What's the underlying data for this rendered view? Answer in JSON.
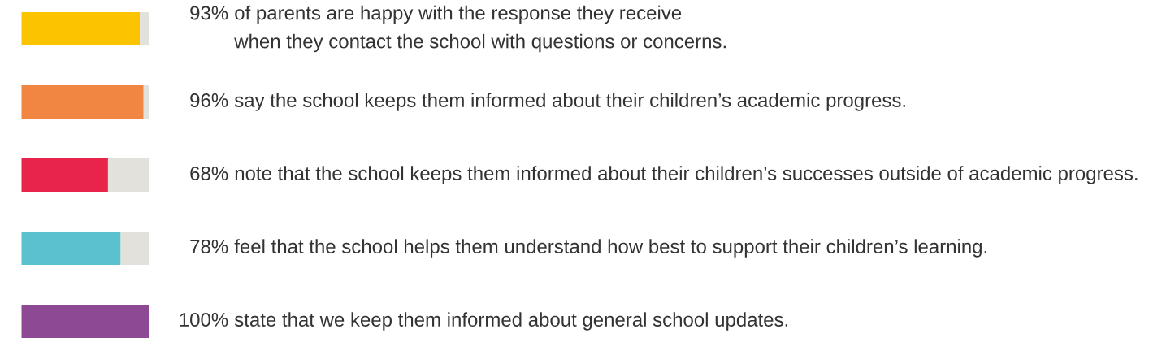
{
  "chart_data": {
    "type": "bar",
    "orientation": "horizontal",
    "stacked": true,
    "categories": [
      "of parents are happy with the response they receive\nwhen they contact the school with questions or concerns.",
      "say the school keeps them informed about their children’s academic progress.",
      "note that the school keeps them informed about their children’s successes outside of academic progress.",
      "feel that the school helps them understand how best to support their children’s learning.",
      "state that we keep them informed about general school updates."
    ],
    "series": [
      {
        "colors": [
          "#fcc300",
          "#f08641",
          "#e8244a",
          "#5bc1cf",
          "#8d4993"
        ],
        "values": [
          93,
          96,
          68,
          78,
          100
        ],
        "value_labels": [
          "93%",
          "96%",
          "68%",
          "78%",
          "100%"
        ]
      },
      {
        "color": "#e2e1dc",
        "values": [
          7,
          4,
          32,
          22,
          0
        ]
      }
    ],
    "tick_labels": "y"
  }
}
